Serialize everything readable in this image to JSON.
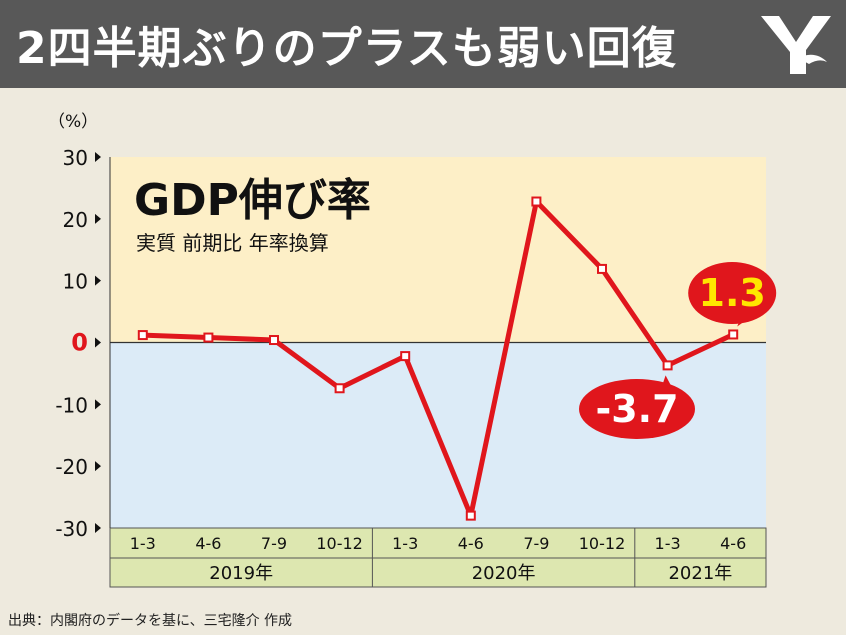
{
  "header": {
    "headline": "2四半期ぶりのプラスも弱い回復"
  },
  "colors": {
    "header_bg": "#585858",
    "positive_band": "#fdefc7",
    "negative_band": "#dcebf7",
    "line": "#e0161c",
    "callout": "#e0161c",
    "highlight_text": "#ffe600",
    "axis_band": "#dde7b0"
  },
  "chart_data": {
    "type": "line",
    "title": "GDP伸び率",
    "subtitle": "実質 前期比 年率換算",
    "ylabel": "（%）",
    "ylim": [
      -30,
      30
    ],
    "yticks": [
      {
        "value": 30,
        "label": "30"
      },
      {
        "value": 20,
        "label": "20"
      },
      {
        "value": 10,
        "label": "10"
      },
      {
        "value": 0,
        "label": "0"
      },
      {
        "value": -10,
        "label": "-10"
      },
      {
        "value": -20,
        "label": "-20"
      },
      {
        "value": -30,
        "label": "-30"
      }
    ],
    "categories": [
      "1-3",
      "4-6",
      "7-9",
      "10-12",
      "1-3",
      "4-6",
      "7-9",
      "10-12",
      "1-3",
      "4-6"
    ],
    "years": [
      {
        "label": "2019年",
        "count": 4
      },
      {
        "label": "2020年",
        "count": 4
      },
      {
        "label": "2021年",
        "count": 2
      }
    ],
    "values": [
      1.2,
      0.8,
      0.4,
      -7.4,
      -2.2,
      -28.0,
      22.8,
      11.9,
      -3.7,
      1.3
    ],
    "grid": false,
    "annotations": [
      {
        "index": 8,
        "text": "-3.7"
      },
      {
        "index": 9,
        "text": "1.3"
      }
    ]
  },
  "footer": {
    "source": "出典：内閣府のデータを基に、三宅隆介 作成"
  }
}
